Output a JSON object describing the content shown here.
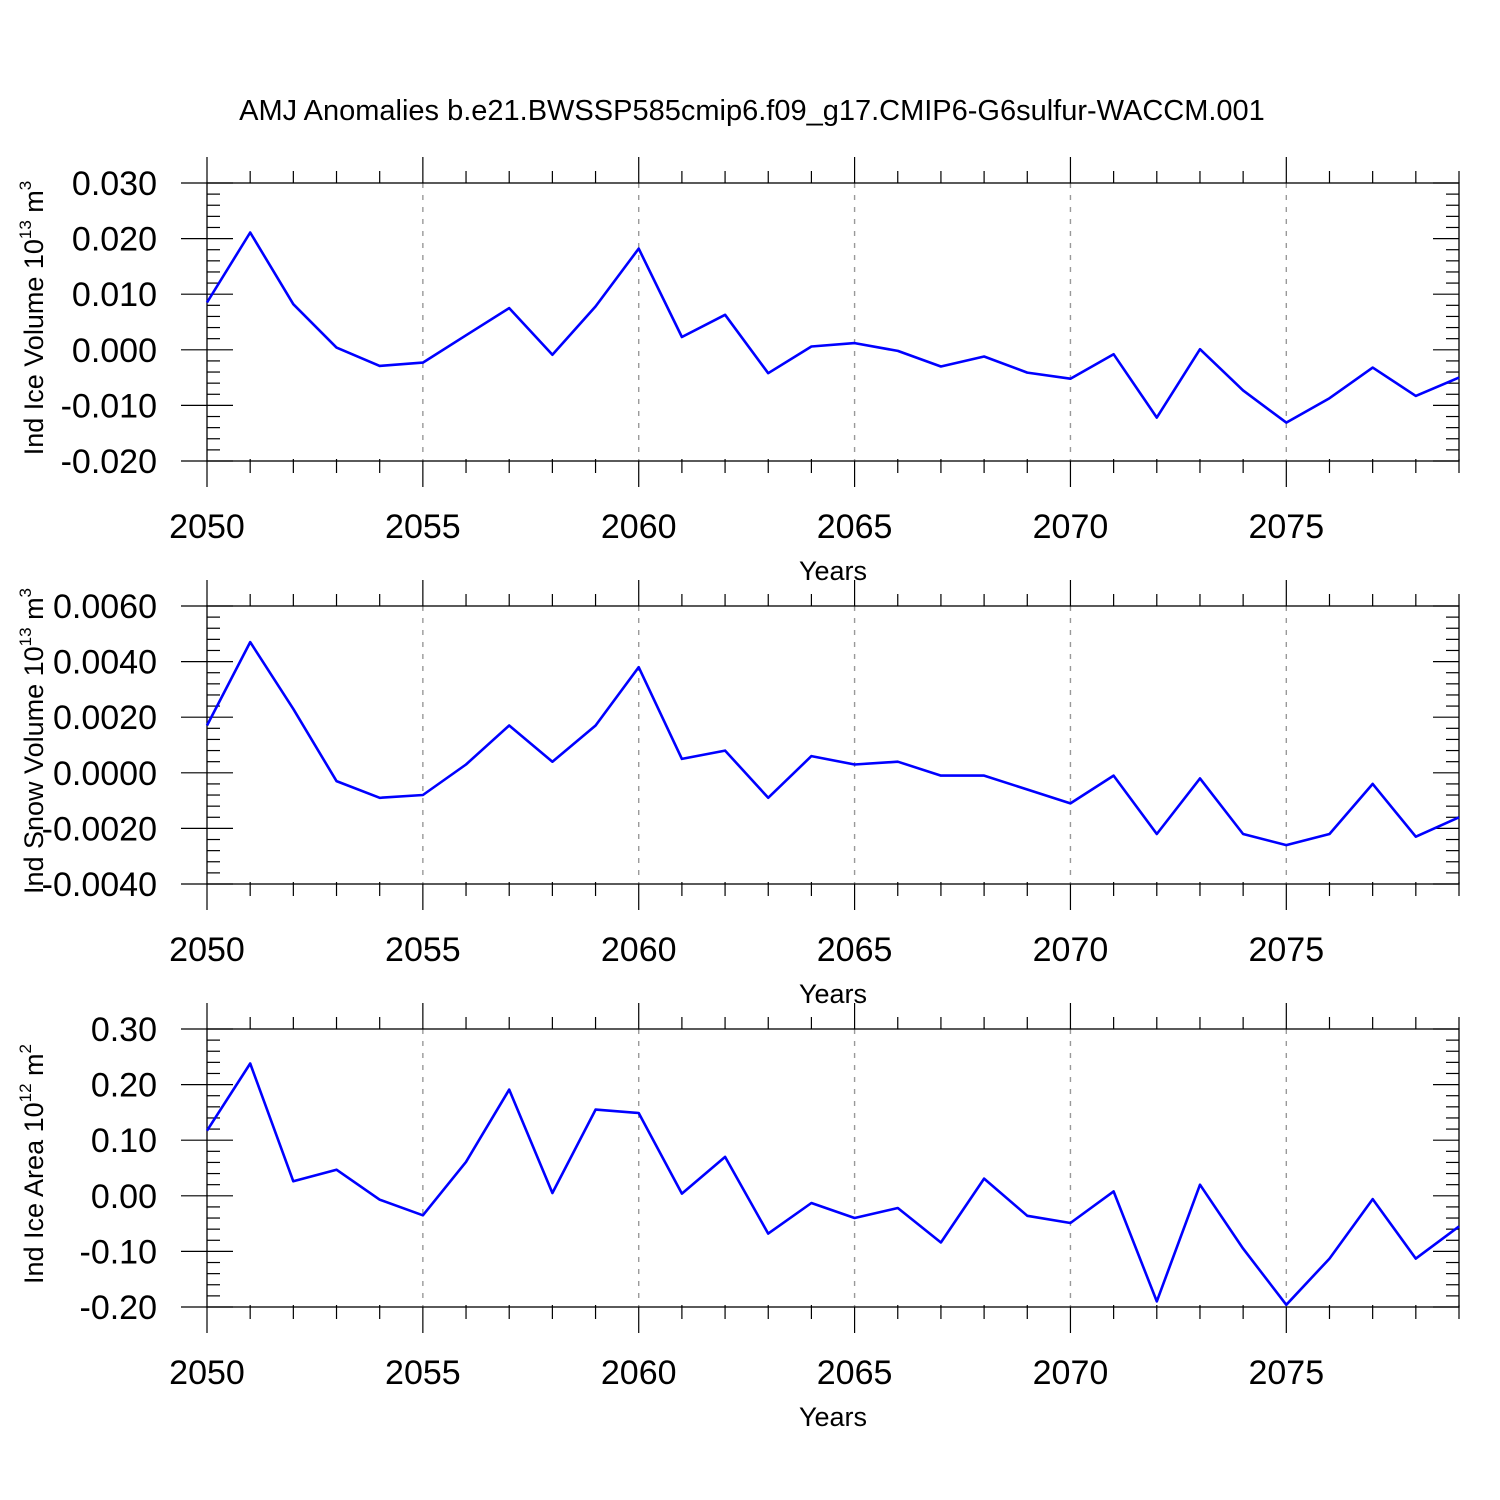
{
  "figure": {
    "title": "AMJ Anomalies b.e21.BWSSP585cmip6.f09_g17.CMIP6-G6sulfur-WACCM.001"
  },
  "colors": {
    "series": "#0000ff",
    "grid": "#999999",
    "axes": "#000000"
  },
  "chart_data": [
    {
      "type": "line",
      "xlabel": "Years",
      "ylabel": {
        "text": "Ind Ice Volume 10",
        "sup": "13",
        "unit": " m",
        "unit_sup": "3"
      },
      "xlim": [
        2050,
        2079
      ],
      "ylim": [
        -0.02,
        0.03
      ],
      "yticks": [
        -0.02,
        -0.01,
        0.0,
        0.01,
        0.02,
        0.03
      ],
      "ytick_labels": [
        "-0.020",
        "-0.010",
        "0.000",
        "0.010",
        "0.020",
        "0.030"
      ],
      "xticks": [
        2050,
        2055,
        2060,
        2065,
        2070,
        2075
      ],
      "xtick_labels": [
        "2050",
        "2055",
        "2060",
        "2065",
        "2070",
        "2075"
      ],
      "grid": "vertical dashed at major x ticks",
      "x": [
        2050,
        2051,
        2052,
        2053,
        2054,
        2055,
        2056,
        2057,
        2058,
        2059,
        2060,
        2061,
        2062,
        2063,
        2064,
        2065,
        2066,
        2067,
        2068,
        2069,
        2070,
        2071,
        2072,
        2073,
        2074,
        2075,
        2076,
        2077,
        2078,
        2079
      ],
      "values": [
        0.0085,
        0.0211,
        0.0082,
        0.0004,
        -0.0029,
        -0.0023,
        0.0026,
        0.0075,
        -0.0009,
        0.0078,
        0.0182,
        0.0023,
        0.0063,
        -0.0042,
        0.0006,
        0.0012,
        -0.0002,
        -0.003,
        -0.0012,
        -0.0041,
        -0.0052,
        -0.0008,
        -0.0122,
        0.0001,
        -0.0073,
        -0.0131,
        -0.0087,
        -0.0032,
        -0.0083,
        -0.005
      ]
    },
    {
      "type": "line",
      "xlabel": "Years",
      "ylabel": {
        "text": "Ind Snow Volume 10",
        "sup": "13",
        "unit": " m",
        "unit_sup": "3"
      },
      "xlim": [
        2050,
        2079
      ],
      "ylim": [
        -0.004,
        0.006
      ],
      "yticks": [
        -0.004,
        -0.002,
        0.0,
        0.002,
        0.004,
        0.006
      ],
      "ytick_labels": [
        "-0.0040",
        "-0.0020",
        "0.0000",
        "0.0020",
        "0.0040",
        "0.0060"
      ],
      "xticks": [
        2050,
        2055,
        2060,
        2065,
        2070,
        2075
      ],
      "xtick_labels": [
        "2050",
        "2055",
        "2060",
        "2065",
        "2070",
        "2075"
      ],
      "grid": "vertical dashed at major x ticks",
      "x": [
        2050,
        2051,
        2052,
        2053,
        2054,
        2055,
        2056,
        2057,
        2058,
        2059,
        2060,
        2061,
        2062,
        2063,
        2064,
        2065,
        2066,
        2067,
        2068,
        2069,
        2070,
        2071,
        2072,
        2073,
        2074,
        2075,
        2076,
        2077,
        2078,
        2079
      ],
      "values": [
        0.0017,
        0.0047,
        0.0023,
        -0.0003,
        -0.0009,
        -0.0008,
        0.0003,
        0.0017,
        0.0004,
        0.0017,
        0.0038,
        0.0005,
        0.0008,
        -0.0009,
        0.0006,
        0.0003,
        0.0004,
        -0.0001,
        -0.0001,
        -0.0006,
        -0.0011,
        -0.0001,
        -0.0022,
        -0.0002,
        -0.0022,
        -0.0026,
        -0.0022,
        -0.0004,
        -0.0023,
        -0.0016
      ]
    },
    {
      "type": "line",
      "xlabel": "Years",
      "ylabel": {
        "text": "Ind Ice Area 10",
        "sup": "12",
        "unit": " m",
        "unit_sup": "2"
      },
      "xlim": [
        2050,
        2079
      ],
      "ylim": [
        -0.2,
        0.3
      ],
      "yticks": [
        -0.2,
        -0.1,
        0.0,
        0.1,
        0.2,
        0.3
      ],
      "ytick_labels": [
        "-0.20",
        "-0.10",
        "0.00",
        "0.10",
        "0.20",
        "0.30"
      ],
      "xticks": [
        2050,
        2055,
        2060,
        2065,
        2070,
        2075
      ],
      "xtick_labels": [
        "2050",
        "2055",
        "2060",
        "2065",
        "2070",
        "2075"
      ],
      "grid": "vertical dashed at major x ticks",
      "x": [
        2050,
        2051,
        2052,
        2053,
        2054,
        2055,
        2056,
        2057,
        2058,
        2059,
        2060,
        2061,
        2062,
        2063,
        2064,
        2065,
        2066,
        2067,
        2068,
        2069,
        2070,
        2071,
        2072,
        2073,
        2074,
        2075,
        2076,
        2077,
        2078,
        2079
      ],
      "values": [
        0.117,
        0.238,
        0.026,
        0.047,
        -0.007,
        -0.035,
        0.061,
        0.191,
        0.005,
        0.155,
        0.149,
        0.004,
        0.07,
        -0.068,
        -0.013,
        -0.04,
        -0.022,
        -0.084,
        0.031,
        -0.036,
        -0.049,
        0.008,
        -0.19,
        0.02,
        -0.095,
        -0.196,
        -0.113,
        -0.006,
        -0.113,
        -0.055
      ]
    }
  ]
}
